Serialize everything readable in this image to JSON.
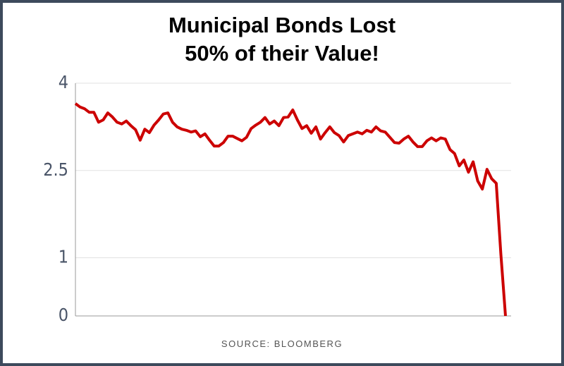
{
  "chart_data": {
    "type": "line",
    "title": [
      "Municipal Bonds Lost",
      "50% of their Value!"
    ],
    "source": "SOURCE: BLOOMBERG",
    "series": [
      {
        "color": "#cc0000",
        "values": [
          3.65,
          3.59,
          3.56,
          3.5,
          3.5,
          3.33,
          3.37,
          3.49,
          3.42,
          3.33,
          3.3,
          3.35,
          3.27,
          3.2,
          3.02,
          3.21,
          3.15,
          3.28,
          3.37,
          3.47,
          3.49,
          3.33,
          3.25,
          3.21,
          3.19,
          3.16,
          3.18,
          3.08,
          3.13,
          3.02,
          2.92,
          2.92,
          2.98,
          3.09,
          3.09,
          3.05,
          3.01,
          3.07,
          3.22,
          3.28,
          3.33,
          3.41,
          3.3,
          3.35,
          3.27,
          3.41,
          3.42,
          3.54,
          3.37,
          3.22,
          3.27,
          3.14,
          3.25,
          3.04,
          3.15,
          3.25,
          3.15,
          3.1,
          2.99,
          3.1,
          3.13,
          3.16,
          3.13,
          3.19,
          3.16,
          3.25,
          3.18,
          3.16,
          3.07,
          2.98,
          2.97,
          3.04,
          3.09,
          2.99,
          2.91,
          2.91,
          3.01,
          3.06,
          3.01,
          3.06,
          3.04,
          2.86,
          2.79,
          2.58,
          2.68,
          2.47,
          2.65,
          2.32,
          2.18,
          2.52,
          2.36,
          2.28,
          1.07,
          0
        ]
      }
    ],
    "ylim": [
      0,
      4
    ],
    "yticks": [
      0,
      1,
      2.5,
      4
    ],
    "grid": true
  }
}
